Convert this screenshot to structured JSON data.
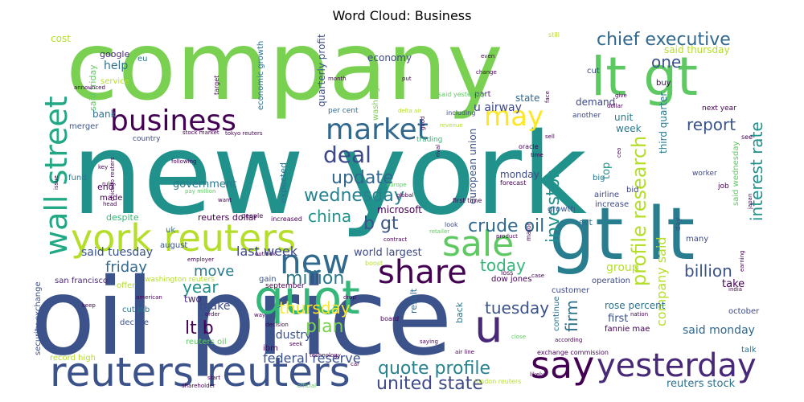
{
  "chart_data": {
    "type": "wordcloud",
    "title": "Word Cloud: Business",
    "words": [
      {
        "text": "new york",
        "color": "#21918c"
      },
      {
        "text": "company",
        "color": "#7ad151"
      },
      {
        "text": "oil price",
        "color": "#3b528b"
      },
      {
        "text": "gt lt",
        "color": "#287d8e"
      },
      {
        "text": "lt gt",
        "color": "#5ec962"
      },
      {
        "text": "reuters reuters",
        "color": "#3b528b"
      },
      {
        "text": "york reuters",
        "color": "#b5de2b"
      },
      {
        "text": "wall street",
        "color": "#22a884"
      },
      {
        "text": "quot",
        "color": "#35b779"
      },
      {
        "text": "business",
        "color": "#440154"
      },
      {
        "text": "say",
        "color": "#440154"
      },
      {
        "text": "yesterday",
        "color": "#482878"
      },
      {
        "text": "market",
        "color": "#31688e"
      },
      {
        "text": "new",
        "color": "#31688e"
      },
      {
        "text": "sale",
        "color": "#5ec962"
      },
      {
        "text": "share",
        "color": "#440154"
      },
      {
        "text": "u",
        "color": "#482878"
      },
      {
        "text": "may",
        "color": "#fde725"
      },
      {
        "text": "deal",
        "color": "#3e4989"
      },
      {
        "text": "quote profile",
        "color": "#26828e"
      },
      {
        "text": "united state",
        "color": "#3e4989"
      },
      {
        "text": "chief executive",
        "color": "#31688e"
      },
      {
        "text": "profile research",
        "color": "#b5de2b"
      },
      {
        "text": "investor",
        "color": "#21918c"
      },
      {
        "text": "update",
        "color": "#31688e"
      },
      {
        "text": "wednesday",
        "color": "#26828e"
      },
      {
        "text": "crude oil",
        "color": "#31688e"
      },
      {
        "text": "china",
        "color": "#21918c"
      },
      {
        "text": "b gt",
        "color": "#3b528b"
      },
      {
        "text": "million",
        "color": "#2a788e"
      },
      {
        "text": "tuesday",
        "color": "#3b528b"
      },
      {
        "text": "plan",
        "color": "#7ad151"
      },
      {
        "text": "thursday",
        "color": "#fde725"
      },
      {
        "text": "lt b",
        "color": "#440154"
      },
      {
        "text": "firm",
        "color": "#2c728e"
      },
      {
        "text": "report",
        "color": "#3b528b"
      },
      {
        "text": "interest rate",
        "color": "#21918c"
      },
      {
        "text": "billion",
        "color": "#3b528b"
      },
      {
        "text": "company said",
        "color": "#b5de2b"
      },
      {
        "text": "today",
        "color": "#35b779"
      },
      {
        "text": "one",
        "color": "#3b528b"
      },
      {
        "text": "year",
        "color": "#21918c"
      },
      {
        "text": "friday",
        "color": "#31688e"
      },
      {
        "text": "move",
        "color": "#287d8e"
      },
      {
        "text": "last week",
        "color": "#3e4989"
      },
      {
        "text": "said tuesday",
        "color": "#3b528b"
      },
      {
        "text": "federal reserve",
        "color": "#3b528b"
      },
      {
        "text": "said monday",
        "color": "#31688e"
      },
      {
        "text": "government",
        "color": "#2a788e"
      },
      {
        "text": "world largest",
        "color": "#3e4989"
      },
      {
        "text": "reuters stock",
        "color": "#2c728e"
      },
      {
        "text": "make",
        "color": "#3e4989"
      },
      {
        "text": "two",
        "color": "#482878"
      },
      {
        "text": "industry",
        "color": "#3b528b"
      },
      {
        "text": "help",
        "color": "#2c728e"
      },
      {
        "text": "economy",
        "color": "#3e4989"
      },
      {
        "text": "microsoft",
        "color": "#440154"
      },
      {
        "text": "said thursday",
        "color": "#b5de2b"
      },
      {
        "text": "third quarter",
        "color": "#2a788e"
      },
      {
        "text": "state",
        "color": "#31688e"
      },
      {
        "text": "demand",
        "color": "#3e4989"
      },
      {
        "text": "unit",
        "color": "#287d8e"
      },
      {
        "text": "week",
        "color": "#2a788e"
      },
      {
        "text": "monday",
        "color": "#3e4989"
      },
      {
        "text": "top",
        "color": "#21918c"
      },
      {
        "text": "group",
        "color": "#b5de2b"
      },
      {
        "text": "take",
        "color": "#440154"
      },
      {
        "text": "first",
        "color": "#3b528b"
      },
      {
        "text": "rose percent",
        "color": "#2c728e"
      },
      {
        "text": "bank",
        "color": "#2c728e"
      },
      {
        "text": "u airway",
        "color": "#3e4989"
      },
      {
        "text": "european union",
        "color": "#3b528b"
      },
      {
        "text": "quarterly profit",
        "color": "#3b528b"
      },
      {
        "text": "economic growth",
        "color": "#2c728e"
      },
      {
        "text": "washington",
        "color": "#7ad151"
      },
      {
        "text": "cost",
        "color": "#b5de2b"
      },
      {
        "text": "google",
        "color": "#482878"
      },
      {
        "text": "eu",
        "color": "#2a788e"
      },
      {
        "text": "said friday",
        "color": "#5ec962"
      },
      {
        "text": "service",
        "color": "#b5de2b"
      },
      {
        "text": "merger",
        "color": "#3b528b"
      },
      {
        "text": "fund",
        "color": "#2a788e"
      },
      {
        "text": "end",
        "color": "#440154"
      },
      {
        "text": "made",
        "color": "#440154"
      },
      {
        "text": "despite",
        "color": "#35b779"
      },
      {
        "text": "uk",
        "color": "#2a788e"
      },
      {
        "text": "august",
        "color": "#3b528b"
      },
      {
        "text": "san francisco",
        "color": "#482878"
      },
      {
        "text": "offer",
        "color": "#b5de2b"
      },
      {
        "text": "cut job",
        "color": "#2a788e"
      },
      {
        "text": "decline",
        "color": "#3b528b"
      },
      {
        "text": "reuters oil",
        "color": "#5ec962"
      },
      {
        "text": "record high",
        "color": "#b5de2b"
      },
      {
        "text": "security exchange",
        "color": "#3b528b"
      },
      {
        "text": "reuters dollar",
        "color": "#440154"
      },
      {
        "text": "washington reuters",
        "color": "#b5de2b"
      },
      {
        "text": "gain",
        "color": "#3b528b"
      },
      {
        "text": "expected",
        "color": "#2c728e"
      },
      {
        "text": "result",
        "color": "#31688e"
      },
      {
        "text": "back",
        "color": "#2a788e"
      },
      {
        "text": "dow jones",
        "color": "#440154"
      },
      {
        "text": "continue",
        "color": "#2c728e"
      },
      {
        "text": "growth",
        "color": "#3b528b"
      },
      {
        "text": "set",
        "color": "#2c728e"
      },
      {
        "text": "customer",
        "color": "#3e4989"
      },
      {
        "text": "operation",
        "color": "#3e4989"
      },
      {
        "text": "october",
        "color": "#3e4989"
      },
      {
        "text": "fannie mae",
        "color": "#440154"
      },
      {
        "text": "talk",
        "color": "#2c728e"
      },
      {
        "text": "ibm",
        "color": "#440154"
      },
      {
        "text": "next year",
        "color": "#440154"
      },
      {
        "text": "worker",
        "color": "#3e4989"
      },
      {
        "text": "job",
        "color": "#440154"
      },
      {
        "text": "said wednesday",
        "color": "#5ec962"
      },
      {
        "text": "airline",
        "color": "#3e4989"
      },
      {
        "text": "bid",
        "color": "#3e4989"
      },
      {
        "text": "increase",
        "color": "#3e4989"
      },
      {
        "text": "big",
        "color": "#2a788e"
      },
      {
        "text": "many",
        "color": "#3e4989"
      },
      {
        "text": "day",
        "color": "#3e4989"
      },
      {
        "text": "cut",
        "color": "#3e4989"
      },
      {
        "text": "buy",
        "color": "#440154"
      },
      {
        "text": "per cent",
        "color": "#31688e"
      },
      {
        "text": "part",
        "color": "#482878"
      },
      {
        "text": "september",
        "color": "#440154"
      },
      {
        "text": "country",
        "color": "#3e4989"
      },
      {
        "text": "stock market",
        "color": "#440154"
      },
      {
        "text": "tokyo reuters",
        "color": "#440154"
      },
      {
        "text": "another",
        "color": "#3e4989"
      },
      {
        "text": "still",
        "color": "#b5de2b"
      },
      {
        "text": "announced",
        "color": "#440154"
      },
      {
        "text": "target",
        "color": "#440154"
      },
      {
        "text": "month",
        "color": "#440154"
      },
      {
        "text": "put",
        "color": "#440154"
      },
      {
        "text": "even",
        "color": "#440154"
      },
      {
        "text": "change",
        "color": "#440154"
      },
      {
        "text": "delta air",
        "color": "#b5de2b"
      },
      {
        "text": "said yesterday",
        "color": "#5ec962"
      },
      {
        "text": "including",
        "color": "#3e4989"
      },
      {
        "text": "revenue",
        "color": "#b5de2b"
      },
      {
        "text": "good",
        "color": "#440154"
      },
      {
        "text": "sell",
        "color": "#440154"
      },
      {
        "text": "trading",
        "color": "#35b779"
      },
      {
        "text": "oracle",
        "color": "#440154"
      },
      {
        "text": "time",
        "color": "#440154"
      },
      {
        "text": "forecast",
        "color": "#440154"
      },
      {
        "text": "first time",
        "color": "#440154"
      },
      {
        "text": "rival",
        "color": "#440154"
      },
      {
        "text": "europe",
        "color": "#5ec962"
      },
      {
        "text": "global",
        "color": "#440154"
      },
      {
        "text": "look",
        "color": "#3e4989"
      },
      {
        "text": "retailer",
        "color": "#5ec962"
      },
      {
        "text": "product",
        "color": "#440154"
      },
      {
        "text": "contract",
        "color": "#440154"
      },
      {
        "text": "boost",
        "color": "#b5de2b"
      },
      {
        "text": "major",
        "color": "#440154"
      },
      {
        "text": "loss",
        "color": "#440154"
      },
      {
        "text": "case",
        "color": "#440154"
      },
      {
        "text": "drop",
        "color": "#440154"
      },
      {
        "text": "board",
        "color": "#440154"
      },
      {
        "text": "saying",
        "color": "#440154"
      },
      {
        "text": "air line",
        "color": "#440154"
      },
      {
        "text": "close",
        "color": "#5ec962"
      },
      {
        "text": "likely",
        "color": "#440154"
      },
      {
        "text": "london reuters",
        "color": "#b5de2b"
      },
      {
        "text": "exchange commission",
        "color": "#440154"
      },
      {
        "text": "according",
        "color": "#440154"
      },
      {
        "text": "nation",
        "color": "#440154"
      },
      {
        "text": "people",
        "color": "#440154"
      },
      {
        "text": "increased",
        "color": "#440154"
      },
      {
        "text": "pay million",
        "color": "#5ec962"
      },
      {
        "text": "want",
        "color": "#440154"
      },
      {
        "text": "employer",
        "color": "#440154"
      },
      {
        "text": "outlook",
        "color": "#440154"
      },
      {
        "text": "american",
        "color": "#440154"
      },
      {
        "text": "keep",
        "color": "#440154"
      },
      {
        "text": "order",
        "color": "#440154"
      },
      {
        "text": "way",
        "color": "#440154"
      },
      {
        "text": "decision",
        "color": "#440154"
      },
      {
        "text": "seek",
        "color": "#440154"
      },
      {
        "text": "technology",
        "color": "#440154"
      },
      {
        "text": "car",
        "color": "#440154"
      },
      {
        "text": "start",
        "color": "#440154"
      },
      {
        "text": "shareholder",
        "color": "#440154"
      },
      {
        "text": "official",
        "color": "#5ec962"
      },
      {
        "text": "issue",
        "color": "#440154"
      },
      {
        "text": "key",
        "color": "#440154"
      },
      {
        "text": "following",
        "color": "#440154"
      },
      {
        "text": "head",
        "color": "#440154"
      },
      {
        "text": "rule",
        "color": "#440154"
      },
      {
        "text": "chicago reuters",
        "color": "#440154"
      },
      {
        "text": "give",
        "color": "#440154"
      },
      {
        "text": "face",
        "color": "#440154"
      },
      {
        "text": "dollar",
        "color": "#440154"
      },
      {
        "text": "japan",
        "color": "#440154"
      },
      {
        "text": "earning",
        "color": "#440154"
      },
      {
        "text": "india",
        "color": "#440154"
      },
      {
        "text": "see",
        "color": "#440154"
      },
      {
        "text": "ceo",
        "color": "#440154"
      }
    ]
  }
}
